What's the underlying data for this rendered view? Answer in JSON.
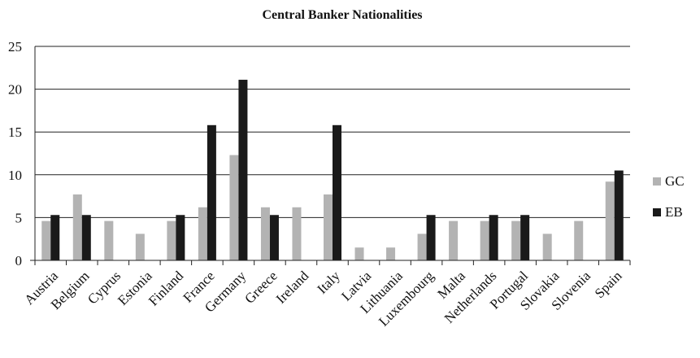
{
  "chart_data": {
    "type": "bar",
    "title": "Central Banker Nationalities",
    "xlabel": "",
    "ylabel": "",
    "ylim": [
      0,
      25
    ],
    "yticks": [
      0,
      5,
      10,
      15,
      20,
      25
    ],
    "grid": true,
    "legend_position": "right",
    "categories": [
      "Austria",
      "Belgium",
      "Cyprus",
      "Estonia",
      "Finland",
      "France",
      "Germany",
      "Greece",
      "Ireland",
      "Italy",
      "Latvia",
      "Lithuania",
      "Luxembourg",
      "Malta",
      "Netherlands",
      "Portugal",
      "Slovakia",
      "Slovenia",
      "Spain"
    ],
    "series": [
      {
        "name": "GC",
        "color": "#b3b3b3",
        "values": [
          4.6,
          7.7,
          4.6,
          3.1,
          4.6,
          6.2,
          12.3,
          6.2,
          6.2,
          7.7,
          1.5,
          1.5,
          3.1,
          4.6,
          4.6,
          4.6,
          3.1,
          4.6,
          9.2
        ]
      },
      {
        "name": "EB",
        "color": "#1a1a1a",
        "values": [
          5.3,
          5.3,
          0,
          0,
          5.3,
          15.8,
          21.1,
          5.3,
          0,
          15.8,
          0,
          0,
          5.3,
          0,
          5.3,
          5.3,
          0,
          0,
          10.5
        ]
      }
    ]
  }
}
